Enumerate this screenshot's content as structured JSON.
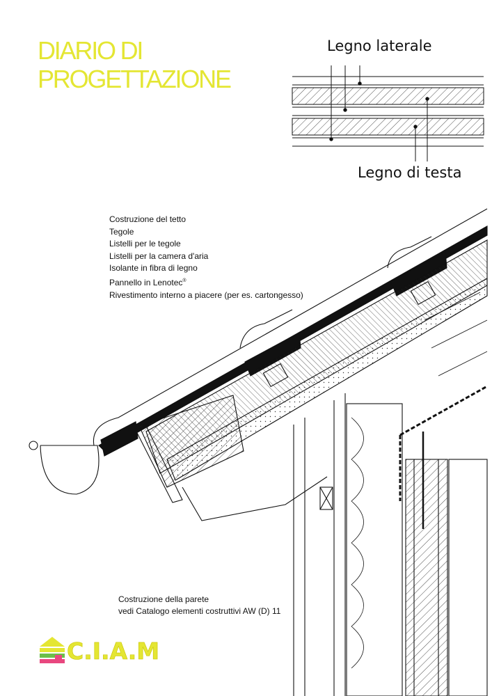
{
  "title": {
    "line1": "DIARIO DI",
    "line2": "PROGETTAZIONE"
  },
  "grain_labels": {
    "side": "Legno laterale",
    "end": "Legno di testa"
  },
  "roof_legend": [
    "Costruzione del tetto",
    "Tegole",
    "Listelli per le tegole",
    "Listelli per la camera d'aria",
    "Isolante in fibra di legno",
    "Pannello in Lenotec",
    "Rivestimento interno a piacere (per es. cartongesso)"
  ],
  "registered_mark": "®",
  "wall_note": {
    "line1": "Costruzione della parete",
    "line2": "vedi Catalogo elementi costruttivi AW (D) 11"
  },
  "logo": {
    "text": "C.I.A.M",
    "colors": {
      "yellow": "#e4e633",
      "pink": "#e8477f",
      "green": "#6bbf4a"
    }
  },
  "colors": {
    "title": "#e4e633",
    "ink": "#111111"
  }
}
